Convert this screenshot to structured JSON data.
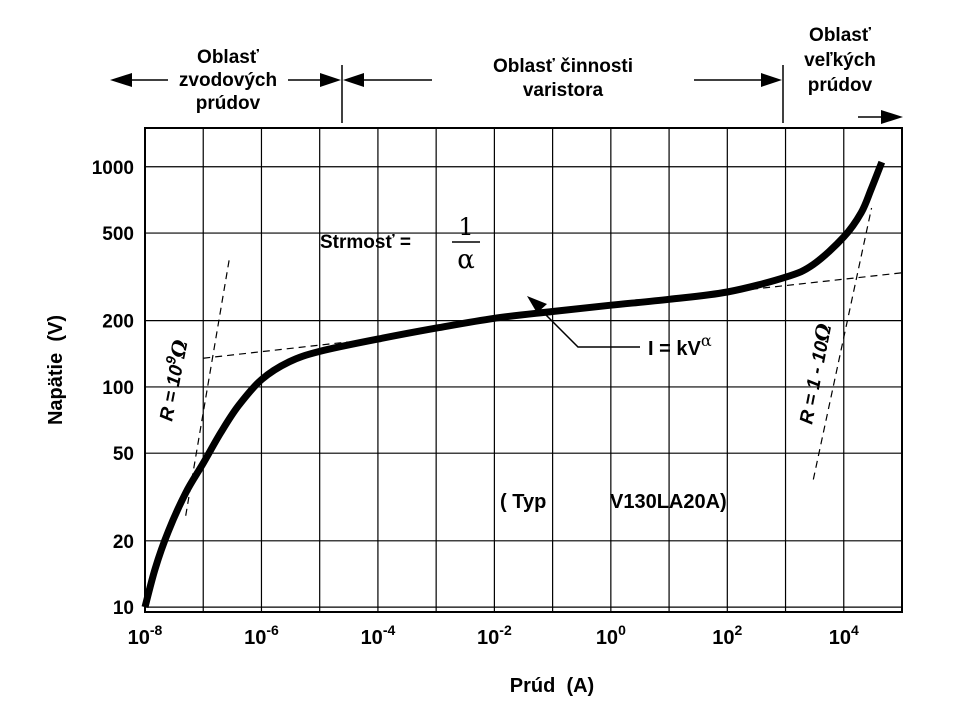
{
  "chart_data": {
    "type": "line",
    "x_scale": "log",
    "y_scale": "log",
    "xlim": [
      1e-08,
      100000.0
    ],
    "ylim": [
      9.5,
      1500
    ],
    "grid": true,
    "xlabel": "Prúd  (A)",
    "ylabel": "Napätie  (V)",
    "x_ticks": [
      {
        "value": 1e-08,
        "base": "10",
        "exp": "-8"
      },
      {
        "value": 1e-06,
        "base": "10",
        "exp": "-6"
      },
      {
        "value": 0.0001,
        "base": "10",
        "exp": "-4"
      },
      {
        "value": 0.01,
        "base": "10",
        "exp": "-2"
      },
      {
        "value": 1,
        "base": "10",
        "exp": "0"
      },
      {
        "value": 100,
        "base": "10",
        "exp": "2"
      },
      {
        "value": 10000,
        "base": "10",
        "exp": "4"
      }
    ],
    "y_ticks": [
      {
        "value": 1000,
        "label": "1000"
      },
      {
        "value": 500,
        "label": "500"
      },
      {
        "value": 200,
        "label": "200"
      },
      {
        "value": 100,
        "label": "100"
      },
      {
        "value": 50,
        "label": "50"
      },
      {
        "value": 20,
        "label": "20"
      },
      {
        "value": 10,
        "label": "10"
      }
    ],
    "series": [
      {
        "x": [
          1e-08,
          1.5e-08,
          2.5e-08,
          5e-08,
          1e-07,
          2e-07,
          4e-07,
          1e-06,
          3e-06,
          1e-05,
          0.0001,
          0.001,
          0.01,
          0.1,
          1,
          10,
          100,
          1000,
          3000,
          10000.0,
          20000.0,
          30000.0,
          45000.0
        ],
        "y": [
          10,
          15,
          22,
          33,
          45,
          62,
          82,
          108,
          130,
          145,
          165,
          185,
          205,
          220,
          235,
          250,
          270,
          315,
          360,
          480,
          620,
          800,
          1050
        ]
      }
    ],
    "guide_lines": [
      {
        "points": [
          [
            5e-08,
            26
          ],
          [
            2.8e-07,
            380
          ]
        ]
      },
      {
        "points": [
          [
            1e-07,
            135
          ],
          [
            3e-05,
            160
          ]
        ]
      },
      {
        "points": [
          [
            100,
            270
          ],
          [
            100000.0,
            330
          ]
        ]
      },
      {
        "points": [
          [
            3000,
            38
          ],
          [
            30000.0,
            650
          ]
        ]
      }
    ],
    "regions": [
      {
        "lines": [
          "Oblasť",
          "zvodových",
          "prúdov"
        ]
      },
      {
        "lines": [
          "Oblasť činnosti",
          "varistora"
        ]
      },
      {
        "lines": [
          "Oblasť",
          "veľkých",
          "prúdov"
        ]
      }
    ],
    "annotations": {
      "slope_label": "Strmosť =",
      "slope_numerator": "1",
      "slope_denominator": "α",
      "formula_main": "I = kV",
      "formula_exp": "α",
      "left_resistance": "R = 10",
      "left_resistance_exp": "9",
      "left_resistance_unit": "Ω",
      "right_resistance": "R = 1 - 10",
      "right_resistance_unit": "Ω",
      "type_prefix": "( Typ",
      "type_model": "V130LA20A)"
    }
  }
}
